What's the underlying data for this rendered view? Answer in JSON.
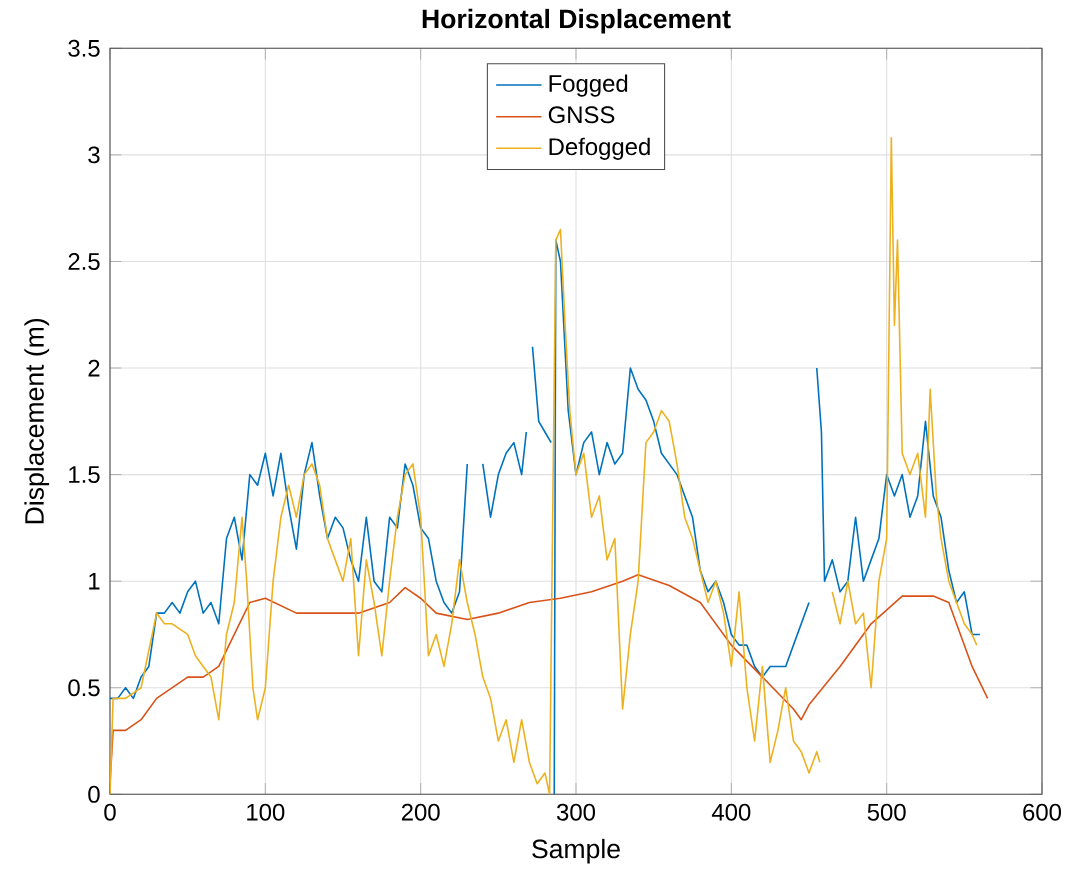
{
  "chart_data": {
    "type": "line",
    "title": "Horizontal Displacement",
    "xlabel": "Sample",
    "ylabel": "Displacement (m)",
    "xlim": [
      0,
      600
    ],
    "xticks": [
      0,
      100,
      200,
      300,
      400,
      500,
      600
    ],
    "ylim": [
      0,
      3.5
    ],
    "yticks": [
      0,
      0.5,
      1,
      1.5,
      2,
      2.5,
      3,
      3.5
    ],
    "grid": true,
    "legend": "top",
    "line_style": "solid",
    "series": [
      {
        "name": "Fogged",
        "color": "#0072bd",
        "x": [
          0,
          5,
          10,
          15,
          20,
          25,
          30,
          35,
          40,
          45,
          50,
          55,
          60,
          65,
          70,
          75,
          80,
          85,
          90,
          95,
          100,
          105,
          110,
          115,
          120,
          125,
          130,
          135,
          140,
          145,
          150,
          155,
          160,
          165,
          170,
          175,
          180,
          185,
          190,
          195,
          200,
          205,
          210,
          215,
          220,
          225,
          230,
          233,
          240,
          245,
          250,
          255,
          260,
          265,
          268,
          270,
          272,
          276,
          280,
          284,
          285,
          286,
          287,
          290,
          295,
          300,
          305,
          310,
          315,
          320,
          325,
          330,
          335,
          340,
          345,
          350,
          355,
          360,
          365,
          370,
          375,
          380,
          385,
          390,
          395,
          400,
          405,
          410,
          415,
          420,
          425,
          430,
          435,
          440,
          445,
          450,
          452,
          455,
          458,
          460,
          465,
          470,
          475,
          480,
          485,
          490,
          495,
          500,
          505,
          510,
          515,
          520,
          525,
          530,
          535,
          540,
          545,
          550,
          555,
          560
        ],
        "values": [
          0.45,
          0.45,
          0.5,
          0.45,
          0.55,
          0.6,
          0.85,
          0.85,
          0.9,
          0.85,
          0.95,
          1.0,
          0.85,
          0.9,
          0.8,
          1.2,
          1.3,
          1.1,
          1.5,
          1.45,
          1.6,
          1.4,
          1.6,
          1.35,
          1.15,
          1.5,
          1.65,
          1.4,
          1.2,
          1.3,
          1.25,
          1.1,
          1.0,
          1.3,
          1.0,
          0.95,
          1.3,
          1.25,
          1.55,
          1.45,
          1.25,
          1.2,
          1.0,
          0.9,
          0.85,
          0.95,
          1.55,
          null,
          1.55,
          1.3,
          1.5,
          1.6,
          1.65,
          1.5,
          1.7,
          null,
          2.1,
          1.75,
          1.7,
          1.65,
          null,
          0,
          2.6,
          2.5,
          1.8,
          1.5,
          1.65,
          1.7,
          1.5,
          1.65,
          1.55,
          1.6,
          2.0,
          1.9,
          1.85,
          1.75,
          1.6,
          1.55,
          1.5,
          1.4,
          1.3,
          1.05,
          0.95,
          1.0,
          0.9,
          0.75,
          0.7,
          0.7,
          0.6,
          0.55,
          0.6,
          0.6,
          0.6,
          0.7,
          0.8,
          0.9,
          null,
          2.0,
          1.7,
          1.0,
          1.1,
          0.95,
          1.0,
          1.3,
          1.0,
          1.1,
          1.2,
          1.5,
          1.4,
          1.5,
          1.3,
          1.4,
          1.75,
          1.4,
          1.3,
          1.05,
          0.9,
          0.95,
          0.75,
          0.75
        ]
      },
      {
        "name": "GNSS",
        "color": "#d95319",
        "x": [
          0,
          2,
          10,
          20,
          30,
          40,
          50,
          60,
          70,
          80,
          90,
          100,
          120,
          140,
          160,
          180,
          190,
          200,
          210,
          230,
          250,
          270,
          290,
          310,
          330,
          340,
          360,
          380,
          400,
          420,
          440,
          445,
          450,
          470,
          490,
          510,
          530,
          540,
          555,
          565
        ],
        "values": [
          0.05,
          0.3,
          0.3,
          0.35,
          0.45,
          0.5,
          0.55,
          0.55,
          0.6,
          0.75,
          0.9,
          0.92,
          0.85,
          0.85,
          0.85,
          0.9,
          0.97,
          0.92,
          0.85,
          0.82,
          0.85,
          0.9,
          0.92,
          0.95,
          1.0,
          1.03,
          0.98,
          0.9,
          0.7,
          0.55,
          0.4,
          0.35,
          0.42,
          0.6,
          0.8,
          0.93,
          0.93,
          0.9,
          0.6,
          0.45
        ]
      },
      {
        "name": "Defogged",
        "color": "#edb120",
        "x": [
          0,
          2,
          10,
          20,
          30,
          35,
          40,
          50,
          55,
          60,
          65,
          70,
          75,
          80,
          85,
          88,
          92,
          95,
          100,
          105,
          110,
          115,
          120,
          125,
          130,
          135,
          140,
          145,
          150,
          155,
          160,
          165,
          170,
          175,
          180,
          185,
          190,
          195,
          200,
          205,
          210,
          215,
          220,
          225,
          230,
          235,
          240,
          245,
          250,
          255,
          260,
          265,
          270,
          275,
          280,
          283,
          287,
          290,
          293,
          296,
          300,
          305,
          310,
          315,
          320,
          325,
          330,
          335,
          340,
          345,
          350,
          355,
          360,
          365,
          370,
          375,
          380,
          385,
          390,
          395,
          400,
          405,
          410,
          415,
          420,
          425,
          430,
          435,
          440,
          445,
          450,
          455,
          457,
          460,
          465,
          470,
          475,
          480,
          485,
          490,
          495,
          500,
          503,
          505,
          507,
          510,
          515,
          520,
          525,
          528,
          532,
          535,
          540,
          545,
          550,
          555,
          558
        ],
        "values": [
          0.0,
          0.45,
          0.45,
          0.5,
          0.85,
          0.8,
          0.8,
          0.75,
          0.65,
          0.6,
          0.55,
          0.35,
          0.75,
          0.9,
          1.3,
          1.0,
          0.5,
          0.35,
          0.5,
          1.0,
          1.3,
          1.45,
          1.3,
          1.5,
          1.55,
          1.45,
          1.2,
          1.1,
          1.0,
          1.2,
          0.65,
          1.1,
          0.9,
          0.65,
          1.0,
          1.3,
          1.5,
          1.55,
          1.3,
          0.65,
          0.75,
          0.6,
          0.8,
          1.1,
          0.9,
          0.75,
          0.55,
          0.45,
          0.25,
          0.35,
          0.15,
          0.35,
          0.15,
          0.05,
          0.1,
          0.0,
          2.6,
          2.65,
          2.2,
          1.8,
          1.5,
          1.6,
          1.3,
          1.4,
          1.1,
          1.2,
          0.4,
          0.75,
          1.0,
          1.65,
          1.7,
          1.8,
          1.75,
          1.55,
          1.3,
          1.2,
          1.05,
          0.9,
          1.0,
          0.85,
          0.6,
          0.95,
          0.5,
          0.25,
          0.6,
          0.15,
          0.3,
          0.5,
          0.25,
          0.2,
          0.1,
          0.2,
          0.15,
          null,
          0.95,
          0.8,
          1.0,
          0.8,
          0.85,
          0.5,
          1.0,
          1.2,
          3.08,
          2.2,
          2.6,
          1.6,
          1.5,
          1.6,
          1.3,
          1.9,
          1.4,
          1.2,
          1.0,
          0.9,
          0.8,
          0.75,
          0.7
        ]
      }
    ]
  }
}
